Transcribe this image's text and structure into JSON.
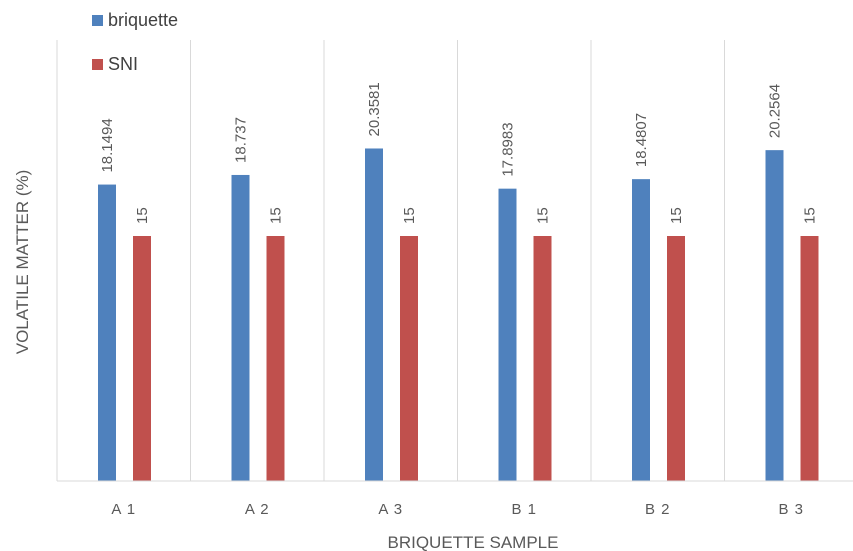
{
  "chart_data": {
    "type": "bar",
    "categories": [
      "A 1",
      "A 2",
      "A 3",
      "B 1",
      "B 2",
      "B 3"
    ],
    "series": [
      {
        "name": "briquette",
        "values": [
          18.1494,
          18.737,
          20.3581,
          17.8983,
          18.4807,
          20.2564
        ],
        "color": "#4F81BD"
      },
      {
        "name": "SNI",
        "values": [
          15,
          15,
          15,
          15,
          15,
          15
        ],
        "color": "#C0504D"
      }
    ],
    "data_labels": [
      [
        "18.1494",
        "18.737",
        "20.3581",
        "17.8983",
        "18.4807",
        "20.2564"
      ],
      [
        "15",
        "15",
        "15",
        "15",
        "15",
        "15"
      ]
    ],
    "xlabel": "BRIQUETTE SAMPLE",
    "ylabel": "VOLATILE MATTER (%)",
    "ylim": [
      0,
      27
    ],
    "grid": "vertical",
    "legend": "top-left",
    "data_label_orientation": "vertical"
  }
}
